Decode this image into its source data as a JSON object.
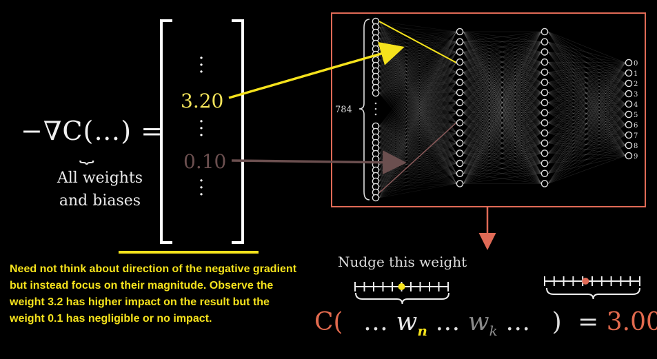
{
  "formula": {
    "lhs": "−∇C(…) =",
    "underbrace": "⏟",
    "caption_line1": "All weights",
    "caption_line2": "and biases"
  },
  "vector": {
    "high_value": "3.20",
    "low_value": "0.10"
  },
  "network": {
    "input_count_label": "784",
    "output_labels": [
      "0",
      "1",
      "2",
      "3",
      "4",
      "5",
      "6",
      "7",
      "8",
      "9"
    ],
    "frame_color": "#e06a56"
  },
  "nudge_label": "Nudge this weight",
  "cost_equation": {
    "c_open": "C(",
    "dots1": "…",
    "w_n": "w",
    "w_n_sub": "n",
    "dots2": "…",
    "w_k": "w",
    "w_k_sub": "k",
    "dots3": "…",
    "close": ")",
    "equals": "=",
    "result": "3.00"
  },
  "note": "Need not think about direction of the negative gradient but instead focus on their magnitude. Observe the weight 3.2 has higher impact on the result but the weight 0.1 has negligible or no impact.",
  "colors": {
    "highlight_yellow": "#f5e21c",
    "faded_red": "#6b4f4f",
    "accent_red": "#e06a56"
  }
}
